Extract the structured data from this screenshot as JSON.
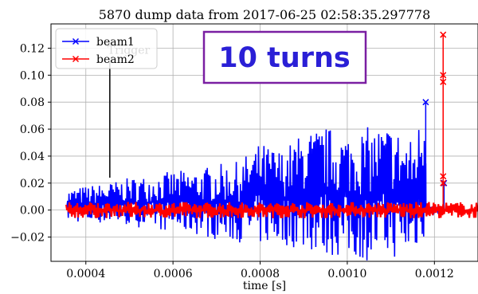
{
  "chart_data": {
    "type": "line",
    "title": "5870 dump data from 2017-06-25 02:58:35.297778",
    "xlabel": "time [s]",
    "ylabel": "",
    "xlim": [
      0.00032,
      0.0013
    ],
    "ylim": [
      -0.038,
      0.138
    ],
    "grid": true,
    "legend_position": "top-left",
    "x_ticks": [
      0.0004,
      0.0006,
      0.0008,
      0.001,
      0.0012
    ],
    "x_tick_labels": [
      "0.0004",
      "0.0006",
      "0.0008",
      "0.0010",
      "0.0012"
    ],
    "y_ticks": [
      -0.02,
      0.0,
      0.02,
      0.04,
      0.06,
      0.08,
      0.1,
      0.12
    ],
    "y_tick_labels": [
      "−0.02",
      "0.00",
      "0.02",
      "0.04",
      "0.06",
      "0.08",
      "0.10",
      "0.12"
    ],
    "series": [
      {
        "name": "beam1",
        "color": "#0000ff",
        "marker": "x",
        "x_range": [
          0.000355,
          0.00122
        ],
        "envelope_x": [
          0.000355,
          0.0004,
          0.00045,
          0.0005,
          0.00055,
          0.0006,
          0.00065,
          0.0007,
          0.00075,
          0.0008,
          0.00085,
          0.0009,
          0.00095,
          0.001,
          0.00105,
          0.0011,
          0.00115,
          0.00118
        ],
        "envelope_max": [
          0.015,
          0.018,
          0.02,
          0.024,
          0.026,
          0.029,
          0.03,
          0.034,
          0.036,
          0.05,
          0.045,
          0.058,
          0.062,
          0.058,
          0.062,
          0.064,
          0.052,
          0.08
        ],
        "envelope_min": [
          -0.008,
          -0.01,
          -0.01,
          -0.012,
          -0.014,
          -0.016,
          -0.018,
          -0.022,
          -0.024,
          -0.026,
          -0.026,
          -0.03,
          -0.034,
          -0.036,
          -0.038,
          -0.036,
          -0.034,
          -0.02
        ],
        "peaks": [
          {
            "x": 0.00118,
            "y": 0.08
          },
          {
            "x": 0.001222,
            "y": 0.02
          }
        ]
      },
      {
        "name": "beam2",
        "color": "#ff0000",
        "marker": "x",
        "x_range": [
          0.000355,
          0.0013
        ],
        "envelope_x": [
          0.000355,
          0.0006,
          0.0008,
          0.001,
          0.0012,
          0.0013
        ],
        "envelope_max": [
          0.006,
          0.006,
          0.006,
          0.006,
          0.006,
          0.006
        ],
        "envelope_min": [
          -0.006,
          -0.006,
          -0.006,
          -0.006,
          -0.006,
          -0.006
        ],
        "peaks": [
          {
            "x": 0.00122,
            "y": 0.13
          },
          {
            "x": 0.00122,
            "y": 0.1
          },
          {
            "x": 0.00122,
            "y": 0.095
          },
          {
            "x": 0.00122,
            "y": 0.025
          },
          {
            "x": 0.00122,
            "y": 0.02
          }
        ]
      }
    ],
    "trigger": {
      "label": "Trigger",
      "x": 0.000455,
      "y_top": 0.11,
      "y_bottom": 0.024,
      "color": "#000000"
    },
    "annotation": {
      "text": "10 turns",
      "color": "#2a1fd6",
      "border_color": "#7a1fa2"
    }
  }
}
